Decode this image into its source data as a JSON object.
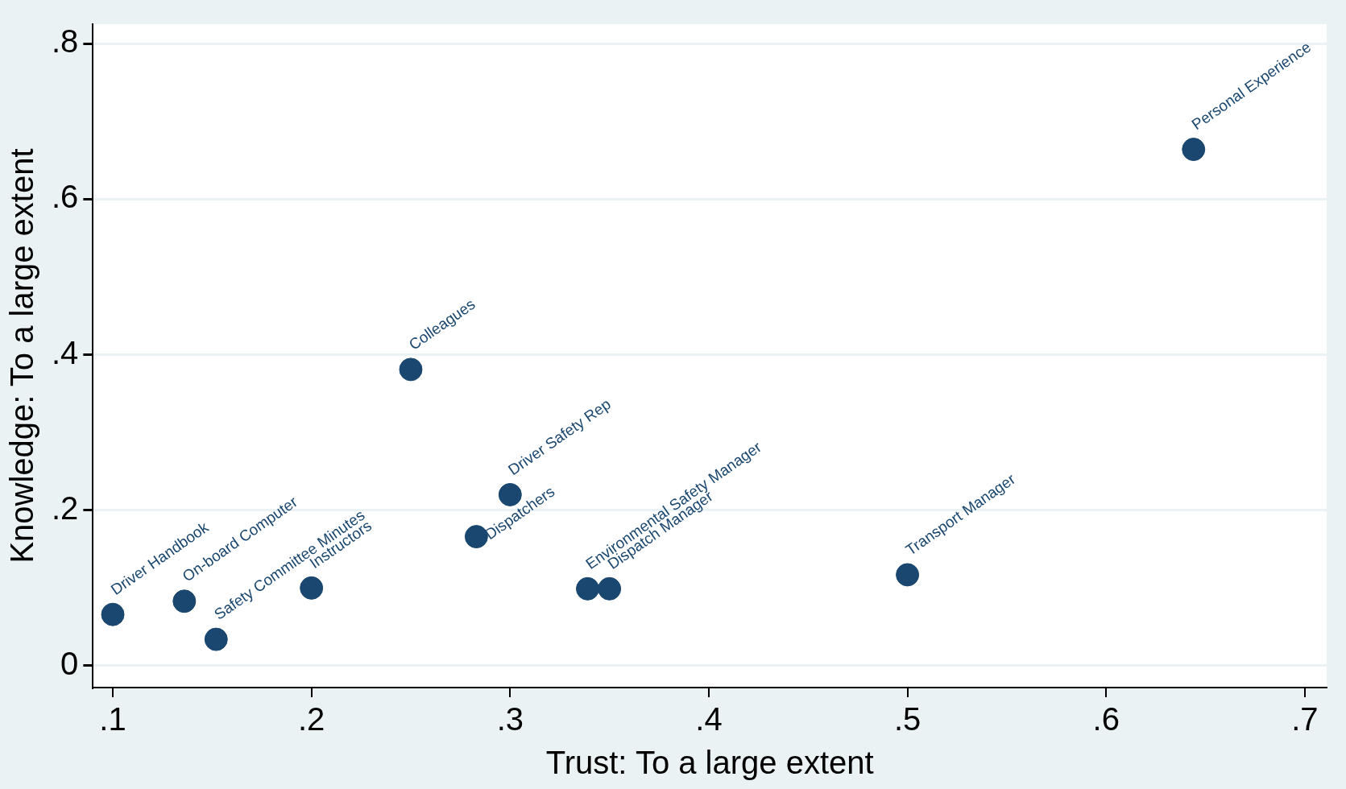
{
  "chart_data": {
    "type": "scatter",
    "xlabel": "Trust: To a large extent",
    "ylabel": "Knowledge: To a large extent",
    "x": [
      0.1,
      0.136,
      0.152,
      0.2,
      0.25,
      0.283,
      0.3,
      0.339,
      0.35,
      0.5,
      0.644
    ],
    "series": [
      {
        "color": "#1a476f",
        "values": [
          0.066,
          0.083,
          0.034,
          0.1,
          0.381,
          0.166,
          0.22,
          0.099,
          0.099,
          0.117,
          0.664
        ]
      }
    ],
    "xlim": [
      0.09,
      0.711
    ],
    "ylim": [
      -0.028,
      0.825
    ],
    "xticks": [
      {
        "value": 0.1,
        "label": ".1"
      },
      {
        "value": 0.2,
        "label": ".2"
      },
      {
        "value": 0.3,
        "label": ".3"
      },
      {
        "value": 0.4,
        "label": ".4"
      },
      {
        "value": 0.5,
        "label": ".5"
      },
      {
        "value": 0.6,
        "label": ".6"
      },
      {
        "value": 0.7,
        "label": ".7"
      }
    ],
    "yticks": [
      0,
      {
        "value": 0.2,
        "label": ".2"
      },
      {
        "value": 0.4,
        "label": ".4"
      },
      {
        "value": 0.6,
        "label": ".6"
      },
      {
        "value": 0.8,
        "label": ".8"
      }
    ],
    "grid": "y",
    "marker": "circle",
    "legend": false,
    "annotations": [
      {
        "text": "Driver Handbook",
        "x": 0.1,
        "y": 0.066
      },
      {
        "text": "On-board Computer",
        "x": 0.136,
        "y": 0.083
      },
      {
        "text": "Safety Committee Minutes",
        "x": 0.152,
        "y": 0.034
      },
      {
        "text": "Instructors",
        "x": 0.2,
        "y": 0.1
      },
      {
        "text": "Colleagues",
        "x": 0.25,
        "y": 0.381
      },
      {
        "text": "Dispatchers",
        "x": 0.283,
        "y": 0.166
      },
      {
        "text": "Driver Safety Rep",
        "x": 0.3,
        "y": 0.22
      },
      {
        "text": "Environmental Safety Manager",
        "x": 0.339,
        "y": 0.099
      },
      {
        "text": "Dispatch Manager",
        "x": 0.35,
        "y": 0.099
      },
      {
        "text": "Transport Manager",
        "x": 0.5,
        "y": 0.117
      },
      {
        "text": "Personal Experience",
        "x": 0.644,
        "y": 0.664
      }
    ]
  }
}
